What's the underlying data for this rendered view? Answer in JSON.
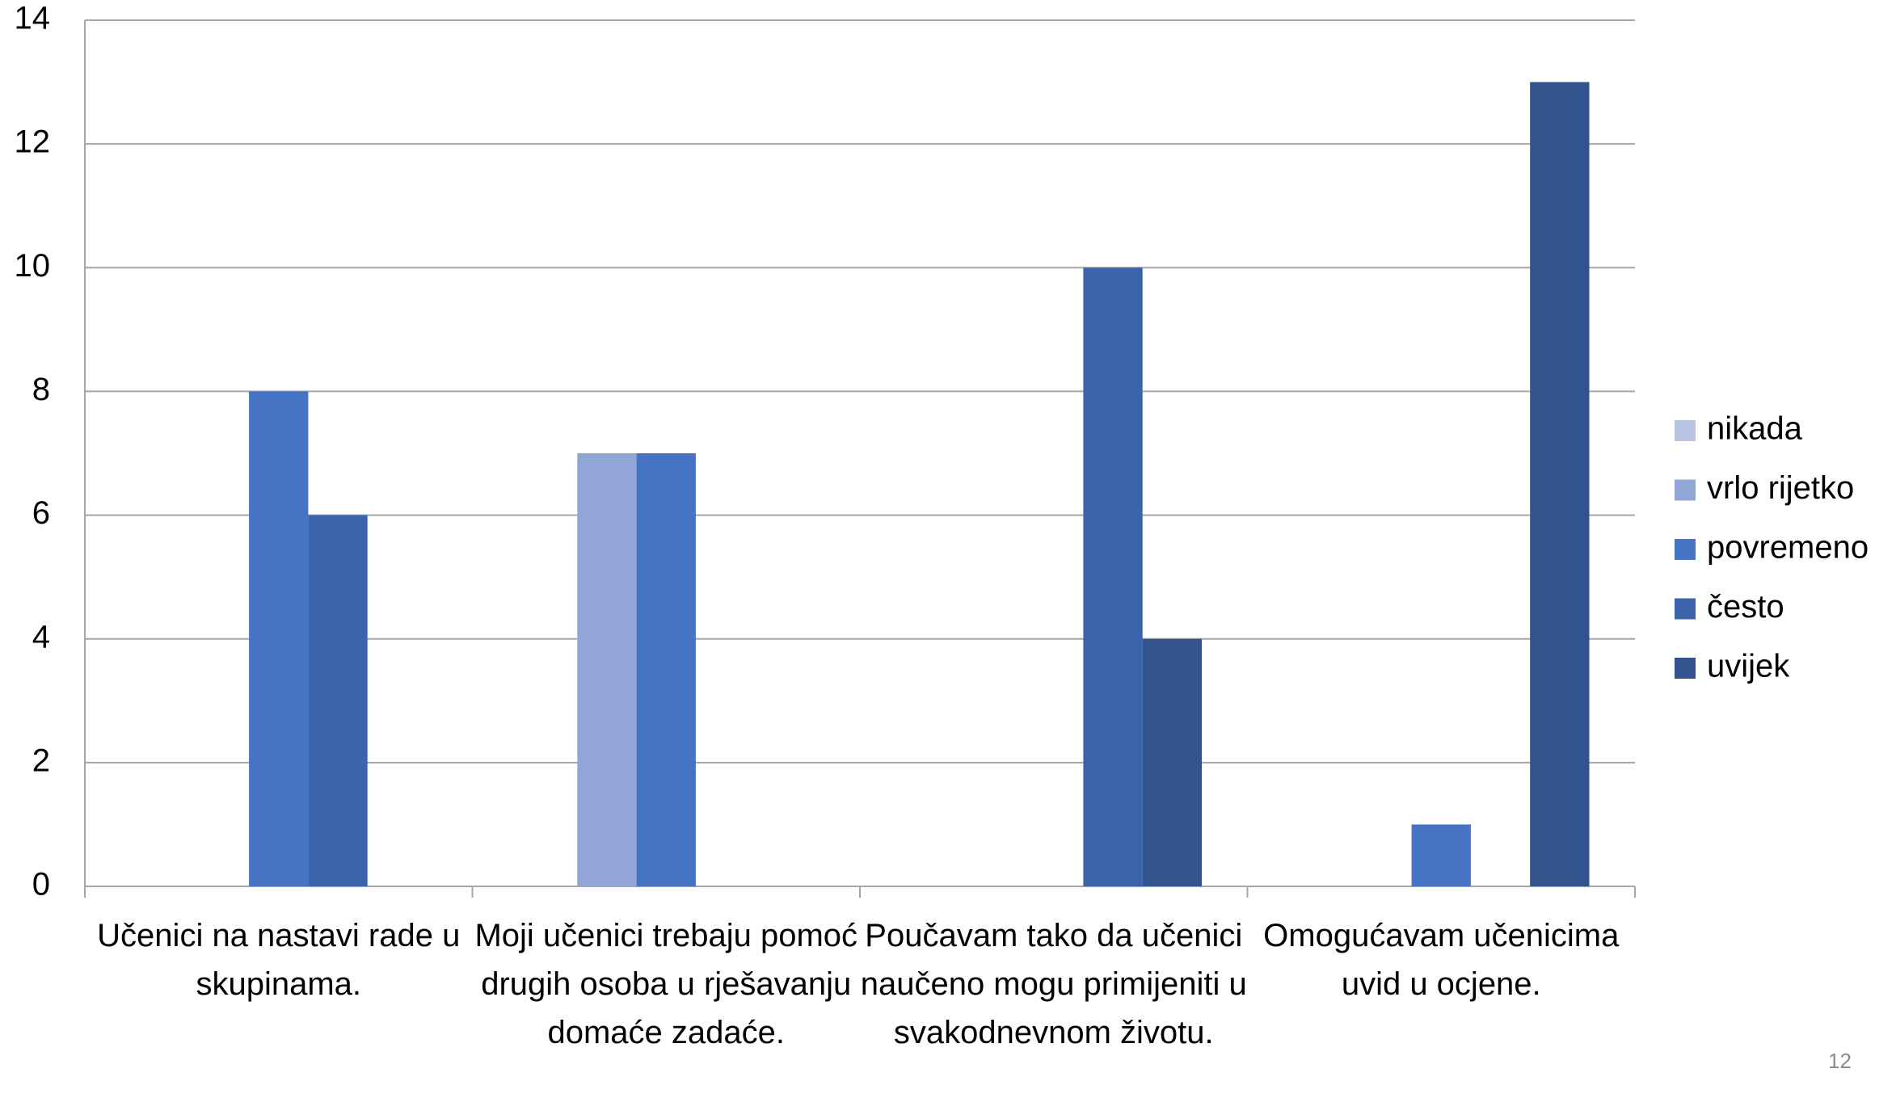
{
  "chart_data": {
    "type": "bar",
    "categories": [
      "Učenici na nastavi rade u skupinama.",
      "Moji učenici trebaju pomoć drugih osoba u rješavanju domaće zadaće.",
      "Poučavam tako da učenici naučeno mogu primijeniti u svakodnevnom životu.",
      "Omogućavam učenicima uvid u ocjene."
    ],
    "series": [
      {
        "name": "nikada",
        "color": "#b9c3e3",
        "values": [
          0,
          0,
          0,
          0
        ]
      },
      {
        "name": "vrlo rijetko",
        "color": "#91a6d6",
        "values": [
          0,
          7,
          0,
          0
        ]
      },
      {
        "name": "povremeno",
        "color": "#4673c4",
        "values": [
          8,
          7,
          0,
          1
        ]
      },
      {
        "name": "često",
        "color": "#3c64ac",
        "values": [
          6,
          0,
          10,
          0
        ]
      },
      {
        "name": "uvijek",
        "color": "#31548f",
        "values": [
          0,
          0,
          4,
          13
        ]
      }
    ],
    "ylim": [
      0,
      14
    ],
    "yticks": [
      0,
      2,
      4,
      6,
      8,
      10,
      12,
      14
    ],
    "grid": true,
    "legend": "right"
  },
  "page_number": "12"
}
